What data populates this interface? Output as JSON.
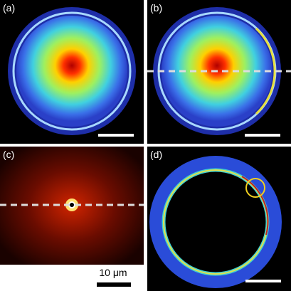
{
  "panels": [
    {
      "label": "(a)"
    },
    {
      "label": "(b)"
    },
    {
      "label": "(c)"
    },
    {
      "label": "(d)"
    }
  ],
  "scale_bar": {
    "label": "10 μm"
  }
}
